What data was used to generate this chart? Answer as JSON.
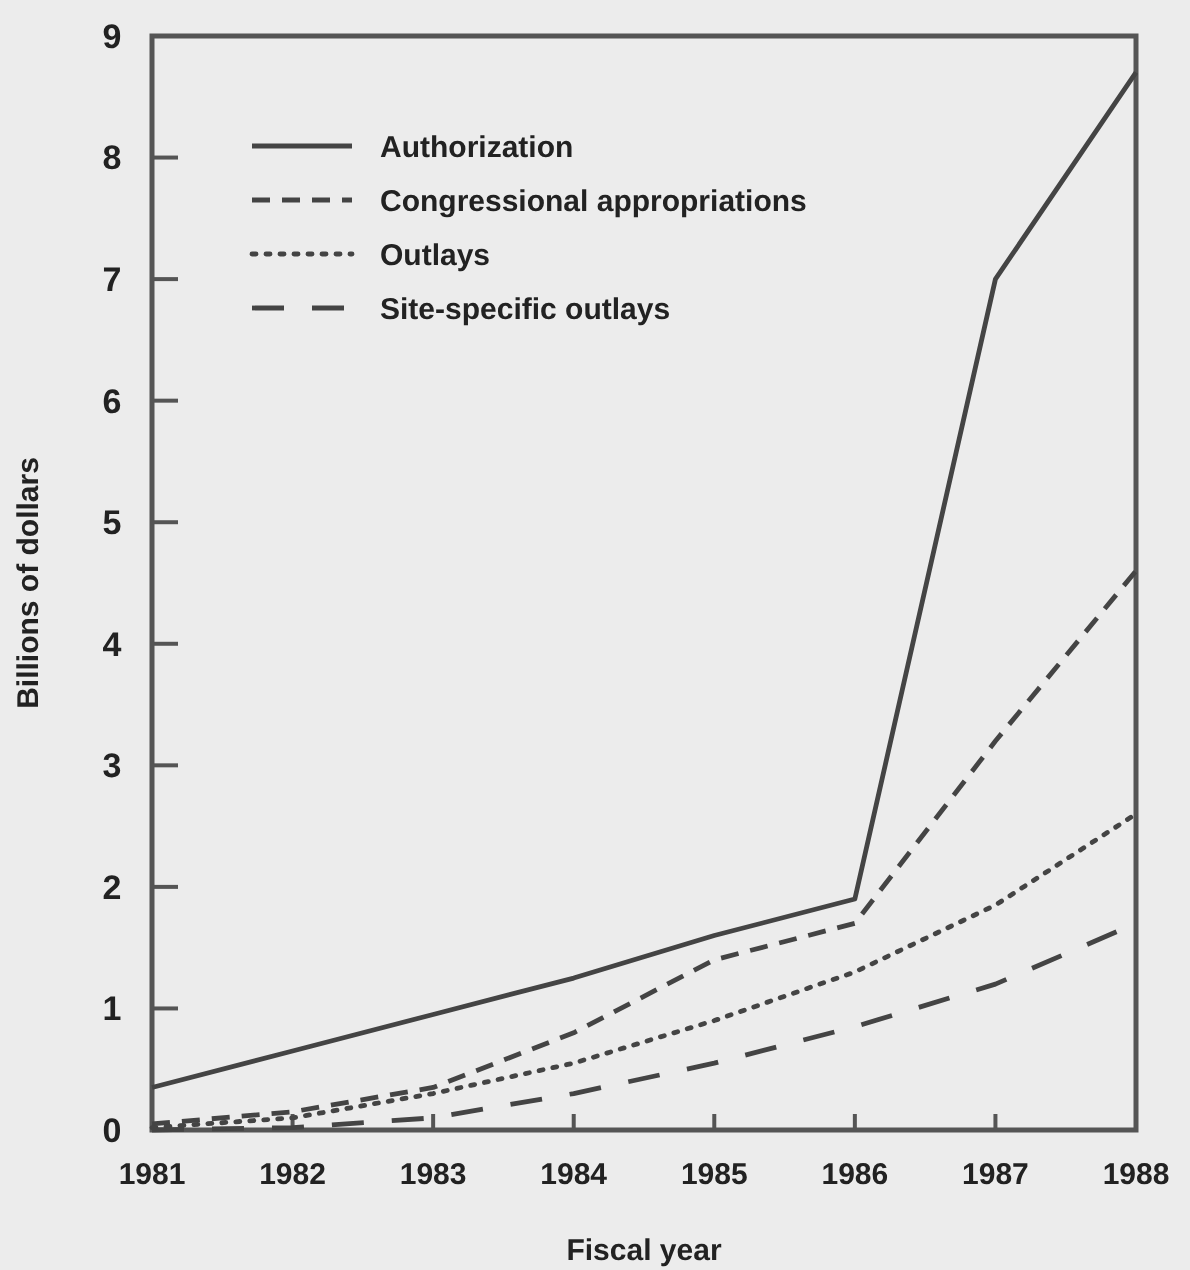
{
  "chart_data": {
    "type": "line",
    "xlabel": "Fiscal year",
    "ylabel": "Billions of dollars",
    "x": [
      1981,
      1982,
      1983,
      1984,
      1985,
      1986,
      1987,
      1988
    ],
    "xlim": [
      1981,
      1988
    ],
    "xticks": [
      1981,
      1982,
      1983,
      1984,
      1985,
      1986,
      1987,
      1988
    ],
    "ylim": [
      0,
      9
    ],
    "yticks": [
      0,
      1,
      2,
      3,
      4,
      5,
      6,
      7,
      8,
      9
    ],
    "legend": "top left",
    "grid": false,
    "series": [
      {
        "name": "Authorization",
        "color": "#444444",
        "line_style": "solid",
        "values": [
          0.35,
          0.65,
          0.95,
          1.25,
          1.6,
          1.9,
          7.0,
          8.7
        ]
      },
      {
        "name": "Congressional appropriations",
        "color": "#444444",
        "line_style": "dashed",
        "values": [
          0.05,
          0.15,
          0.35,
          0.8,
          1.4,
          1.7,
          3.2,
          4.6
        ]
      },
      {
        "name": "Outlays",
        "color": "#444444",
        "line_style": "dotted",
        "values": [
          0.02,
          0.1,
          0.3,
          0.55,
          0.9,
          1.3,
          1.85,
          2.6
        ]
      },
      {
        "name": "Site-specific outlays",
        "color": "#444444",
        "line_style": "longdash",
        "values": [
          0,
          0.02,
          0.1,
          0.3,
          0.55,
          0.85,
          1.2,
          1.7
        ]
      }
    ]
  }
}
